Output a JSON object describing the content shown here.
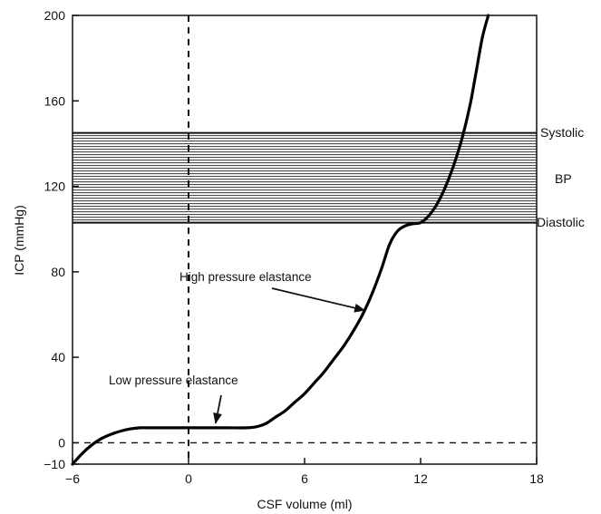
{
  "chart_data": {
    "type": "line",
    "xlabel": "CSF volume (ml)",
    "ylabel": "ICP (mmHg)",
    "xlim": [
      -6,
      18
    ],
    "ylim": [
      -10,
      200
    ],
    "xticks": [
      -6,
      0,
      6,
      12,
      18
    ],
    "xtick_labels": [
      "−6",
      "0",
      "6",
      "12",
      "18"
    ],
    "yticks": [
      -10,
      0,
      40,
      80,
      120,
      160,
      200
    ],
    "ytick_labels": [
      "−10",
      "0",
      "40",
      "80",
      "120",
      "160",
      "200"
    ],
    "grid": false,
    "legend": "none",
    "series": [
      {
        "points": [
          [
            -6,
            -10
          ],
          [
            -5.5,
            -5
          ],
          [
            -5,
            -1
          ],
          [
            -4.5,
            2
          ],
          [
            -4,
            4
          ],
          [
            -3.5,
            5.5
          ],
          [
            -3,
            6.5
          ],
          [
            -2.5,
            7
          ],
          [
            -2,
            7
          ],
          [
            -1,
            7
          ],
          [
            0,
            7
          ],
          [
            1,
            7
          ],
          [
            2,
            7
          ],
          [
            3,
            7
          ],
          [
            3.5,
            7.5
          ],
          [
            4,
            9
          ],
          [
            4.5,
            12
          ],
          [
            5,
            15
          ],
          [
            5.5,
            19
          ],
          [
            6,
            23
          ],
          [
            6.5,
            28
          ],
          [
            7,
            33
          ],
          [
            7.5,
            39
          ],
          [
            8,
            45
          ],
          [
            8.5,
            52
          ],
          [
            9,
            60
          ],
          [
            9.5,
            70
          ],
          [
            10,
            82
          ],
          [
            10.4,
            93
          ],
          [
            10.8,
            99
          ],
          [
            11.2,
            101.5
          ],
          [
            11.6,
            102.5
          ],
          [
            12,
            103
          ],
          [
            12.4,
            106
          ],
          [
            12.8,
            111
          ],
          [
            13.2,
            118
          ],
          [
            13.6,
            127
          ],
          [
            14,
            138
          ],
          [
            14.3,
            148
          ],
          [
            14.6,
            160
          ],
          [
            14.9,
            175
          ],
          [
            15.2,
            190
          ],
          [
            15.5,
            200
          ]
        ]
      }
    ],
    "bp_band": {
      "y_min": 103,
      "y_max": 145,
      "upper_label": "Systolic",
      "middle_label": "BP",
      "lower_label": "Diastolic"
    },
    "reference_lines": {
      "x": 0,
      "y": 0
    },
    "annotations": [
      {
        "text": "High pressure elastance",
        "arrow_to": [
          9.1,
          62
        ]
      },
      {
        "text": "Low pressure elastance",
        "arrow_to": [
          1.4,
          7.5
        ]
      }
    ]
  }
}
